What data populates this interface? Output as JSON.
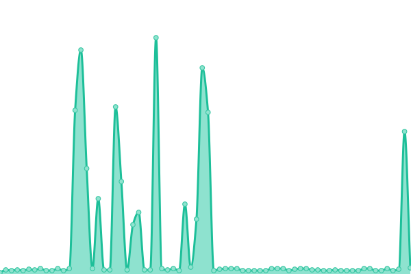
{
  "chart_data": {
    "type": "area",
    "title": "",
    "xlabel": "",
    "ylabel": "",
    "x": [
      0,
      1,
      2,
      3,
      4,
      5,
      6,
      7,
      8,
      9,
      10,
      11,
      12,
      13,
      14,
      15,
      16,
      17,
      18,
      19,
      20,
      21,
      22,
      23,
      24,
      25,
      26,
      27,
      28,
      29,
      30,
      31,
      32,
      33,
      34,
      35,
      36,
      37,
      38,
      39,
      40,
      41,
      42,
      43,
      44,
      45,
      46,
      47,
      48,
      49,
      50,
      51,
      52,
      53,
      54,
      55,
      56,
      57,
      58,
      59,
      60,
      61,
      62,
      63,
      64,
      65,
      66,
      67,
      68,
      69,
      70,
      71
    ],
    "values": [
      2,
      6,
      5,
      6,
      5,
      7,
      6,
      8,
      5,
      5,
      8,
      5,
      8,
      239,
      327,
      154,
      8,
      110,
      6,
      6,
      244,
      135,
      6,
      72,
      90,
      6,
      6,
      345,
      8,
      6,
      8,
      5,
      102,
      10,
      80,
      301,
      236,
      5,
      7,
      8,
      8,
      8,
      5,
      5,
      5,
      5,
      5,
      8,
      8,
      8,
      5,
      7,
      8,
      8,
      6,
      6,
      5,
      5,
      6,
      5,
      5,
      5,
      5,
      8,
      8,
      5,
      5,
      8,
      5,
      7,
      208,
      9
    ],
    "ylim": [
      0,
      400
    ],
    "xlim": [
      0,
      71
    ],
    "grid": false,
    "axes_visible": false,
    "legend": "none",
    "curve": "smooth",
    "markers": true,
    "colors": {
      "line": "#1dbf99",
      "fill": "#8ee2cf",
      "marker_fill": "#8fe3cf",
      "marker_stroke": "#3ec8a6"
    }
  }
}
